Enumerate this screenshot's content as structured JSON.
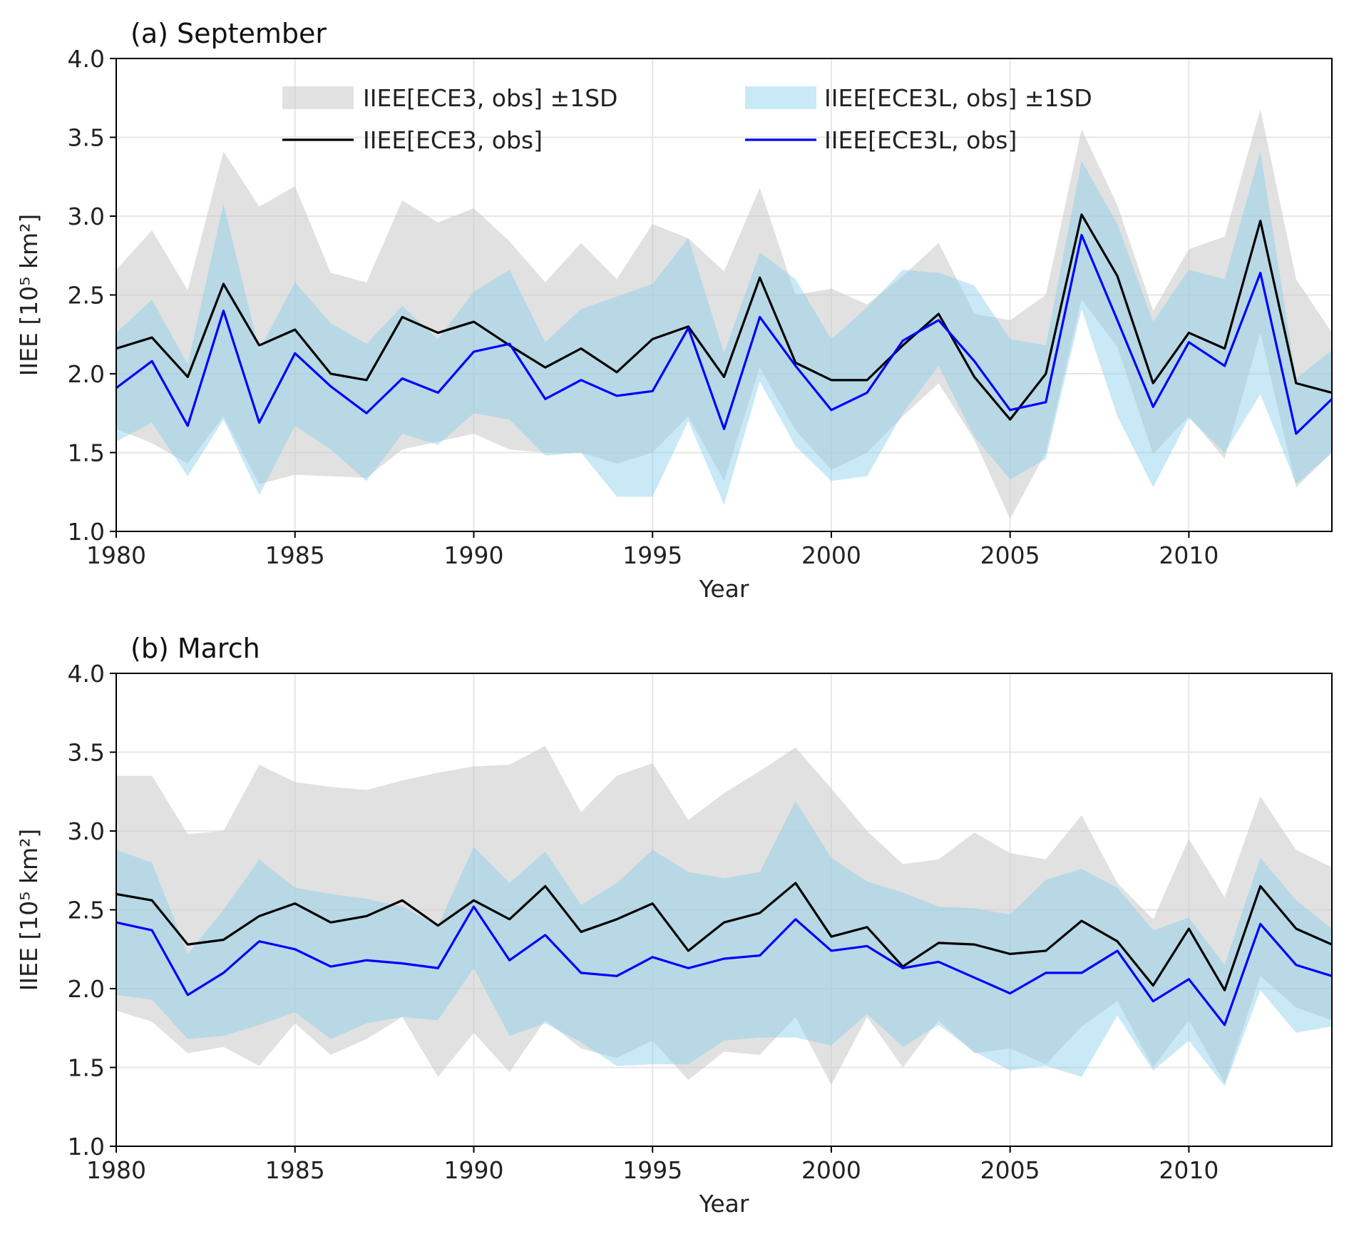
{
  "chart_data": [
    {
      "type": "line",
      "title": "(a) September",
      "xlabel": "Year",
      "ylabel": "IIEE [10⁵ km²]",
      "xlim": [
        1980,
        2014
      ],
      "ylim": [
        1.0,
        4.0
      ],
      "xticks": [
        1980,
        1985,
        1990,
        1995,
        2000,
        2005,
        2010
      ],
      "yticks": [
        "1.0",
        "1.5",
        "2.0",
        "2.5",
        "3.0",
        "3.5",
        "4.0"
      ],
      "grid": true,
      "legend_placement": "top",
      "x": [
        1980,
        1981,
        1982,
        1983,
        1984,
        1985,
        1986,
        1987,
        1988,
        1989,
        1990,
        1991,
        1992,
        1993,
        1994,
        1995,
        1996,
        1997,
        1998,
        1999,
        2000,
        2001,
        2002,
        2003,
        2004,
        2005,
        2006,
        2007,
        2008,
        2009,
        2010,
        2011,
        2012,
        2013,
        2014
      ],
      "bands": [
        {
          "name": "IIEE[ECE3, obs] ±1SD",
          "color": "#c8c8c8",
          "upper": [
            2.66,
            2.91,
            2.53,
            3.41,
            3.06,
            3.19,
            2.64,
            2.58,
            3.1,
            2.96,
            3.05,
            2.84,
            2.58,
            2.83,
            2.6,
            2.95,
            2.86,
            2.65,
            3.18,
            2.5,
            2.54,
            2.44,
            2.62,
            2.83,
            2.38,
            2.34,
            2.5,
            3.55,
            3.07,
            2.4,
            2.79,
            2.87,
            3.68,
            2.6,
            2.26
          ],
          "lower": [
            1.65,
            1.56,
            1.43,
            1.73,
            1.3,
            1.36,
            1.35,
            1.34,
            1.52,
            1.57,
            1.62,
            1.52,
            1.5,
            1.5,
            1.43,
            1.5,
            1.73,
            1.32,
            2.04,
            1.64,
            1.39,
            1.5,
            1.73,
            1.94,
            1.58,
            1.08,
            1.5,
            2.47,
            2.17,
            1.49,
            1.73,
            1.46,
            2.26,
            1.28,
            1.5
          ]
        },
        {
          "name": "IIEE[ECE3L, obs] ±1SD",
          "color": "#87ceeb",
          "upper": [
            2.26,
            2.47,
            2.06,
            3.08,
            2.15,
            2.58,
            2.32,
            2.19,
            2.43,
            2.22,
            2.52,
            2.66,
            2.2,
            2.41,
            2.49,
            2.57,
            2.86,
            2.13,
            2.77,
            2.6,
            2.22,
            2.42,
            2.66,
            2.64,
            2.56,
            2.22,
            2.18,
            3.35,
            2.95,
            2.33,
            2.66,
            2.6,
            3.41,
            1.97,
            2.15
          ],
          "lower": [
            1.57,
            1.69,
            1.35,
            1.71,
            1.23,
            1.67,
            1.52,
            1.32,
            1.62,
            1.55,
            1.75,
            1.71,
            1.48,
            1.5,
            1.22,
            1.22,
            1.7,
            1.17,
            1.95,
            1.54,
            1.32,
            1.35,
            1.75,
            2.05,
            1.6,
            1.33,
            1.46,
            2.41,
            1.73,
            1.28,
            1.72,
            1.5,
            1.87,
            1.3,
            1.5
          ]
        }
      ],
      "series": [
        {
          "name": "IIEE[ECE3, obs]",
          "color": "#000000",
          "values": [
            2.16,
            2.23,
            1.98,
            2.57,
            2.18,
            2.28,
            2.0,
            1.96,
            2.36,
            2.26,
            2.33,
            2.18,
            2.04,
            2.16,
            2.01,
            2.22,
            2.3,
            1.98,
            2.61,
            2.07,
            1.96,
            1.96,
            2.18,
            2.38,
            1.98,
            1.71,
            2.0,
            3.01,
            2.62,
            1.94,
            2.26,
            2.16,
            2.97,
            1.94,
            1.88
          ]
        },
        {
          "name": "IIEE[ECE3L, obs]",
          "color": "#0000ff",
          "values": [
            1.91,
            2.08,
            1.67,
            2.4,
            1.69,
            2.13,
            1.92,
            1.75,
            1.97,
            1.88,
            2.14,
            2.19,
            1.84,
            1.96,
            1.86,
            1.89,
            2.29,
            1.65,
            2.36,
            2.05,
            1.77,
            1.88,
            2.21,
            2.34,
            2.08,
            1.77,
            1.82,
            2.88,
            2.34,
            1.79,
            2.2,
            2.05,
            2.64,
            1.62,
            1.84
          ]
        }
      ]
    },
    {
      "type": "line",
      "title": "(b) March",
      "xlabel": "Year",
      "ylabel": "IIEE [10⁵ km²]",
      "xlim": [
        1980,
        2014
      ],
      "ylim": [
        1.0,
        4.0
      ],
      "xticks": [
        1980,
        1985,
        1990,
        1995,
        2000,
        2005,
        2010
      ],
      "yticks": [
        "1.0",
        "1.5",
        "2.0",
        "2.5",
        "3.0",
        "3.5",
        "4.0"
      ],
      "grid": true,
      "x": [
        1980,
        1981,
        1982,
        1983,
        1984,
        1985,
        1986,
        1987,
        1988,
        1989,
        1990,
        1991,
        1992,
        1993,
        1994,
        1995,
        1996,
        1997,
        1998,
        1999,
        2000,
        2001,
        2002,
        2003,
        2004,
        2005,
        2006,
        2007,
        2008,
        2009,
        2010,
        2011,
        2012,
        2013,
        2014
      ],
      "bands": [
        {
          "name": "IIEE[ECE3, obs] ±1SD",
          "color": "#c8c8c8",
          "upper": [
            3.35,
            3.35,
            2.98,
            3.0,
            3.42,
            3.31,
            3.28,
            3.26,
            3.32,
            3.37,
            3.41,
            3.42,
            3.54,
            3.12,
            3.35,
            3.43,
            3.07,
            3.24,
            3.38,
            3.53,
            3.27,
            3.0,
            2.79,
            2.82,
            2.99,
            2.86,
            2.82,
            3.1,
            2.67,
            2.44,
            2.95,
            2.58,
            3.22,
            2.88,
            2.77
          ],
          "lower": [
            1.86,
            1.79,
            1.59,
            1.63,
            1.51,
            1.78,
            1.58,
            1.68,
            1.82,
            1.44,
            1.72,
            1.47,
            1.8,
            1.62,
            1.56,
            1.67,
            1.42,
            1.6,
            1.58,
            1.82,
            1.39,
            1.82,
            1.5,
            1.8,
            1.59,
            1.62,
            1.52,
            1.76,
            1.92,
            1.5,
            1.8,
            1.4,
            2.08,
            1.88,
            1.8
          ]
        },
        {
          "name": "IIEE[ECE3L, obs] ±1SD",
          "color": "#87ceeb",
          "upper": [
            2.88,
            2.8,
            2.22,
            2.5,
            2.82,
            2.64,
            2.6,
            2.57,
            2.52,
            2.4,
            2.9,
            2.67,
            2.87,
            2.53,
            2.67,
            2.88,
            2.74,
            2.7,
            2.74,
            3.19,
            2.83,
            2.68,
            2.61,
            2.52,
            2.51,
            2.47,
            2.69,
            2.76,
            2.64,
            2.37,
            2.45,
            2.15,
            2.83,
            2.56,
            2.38
          ],
          "lower": [
            1.96,
            1.93,
            1.68,
            1.7,
            1.77,
            1.85,
            1.68,
            1.78,
            1.82,
            1.8,
            2.13,
            1.7,
            1.78,
            1.66,
            1.51,
            1.52,
            1.52,
            1.67,
            1.69,
            1.69,
            1.64,
            1.84,
            1.63,
            1.77,
            1.6,
            1.48,
            1.51,
            1.44,
            1.83,
            1.48,
            1.67,
            1.38,
            1.99,
            1.72,
            1.76
          ]
        }
      ],
      "series": [
        {
          "name": "IIEE[ECE3, obs]",
          "color": "#000000",
          "values": [
            2.6,
            2.56,
            2.28,
            2.31,
            2.46,
            2.54,
            2.42,
            2.46,
            2.56,
            2.4,
            2.56,
            2.44,
            2.65,
            2.36,
            2.44,
            2.54,
            2.24,
            2.42,
            2.48,
            2.67,
            2.33,
            2.39,
            2.14,
            2.29,
            2.28,
            2.22,
            2.24,
            2.43,
            2.3,
            2.02,
            2.38,
            1.99,
            2.65,
            2.38,
            2.28
          ]
        },
        {
          "name": "IIEE[ECE3L, obs]",
          "color": "#0000ff",
          "values": [
            2.42,
            2.37,
            1.96,
            2.1,
            2.3,
            2.25,
            2.14,
            2.18,
            2.16,
            2.13,
            2.52,
            2.18,
            2.34,
            2.1,
            2.08,
            2.2,
            2.13,
            2.19,
            2.21,
            2.44,
            2.24,
            2.27,
            2.13,
            2.17,
            2.07,
            1.97,
            2.1,
            2.1,
            2.24,
            1.92,
            2.06,
            1.77,
            2.41,
            2.15,
            2.08
          ]
        }
      ]
    }
  ]
}
